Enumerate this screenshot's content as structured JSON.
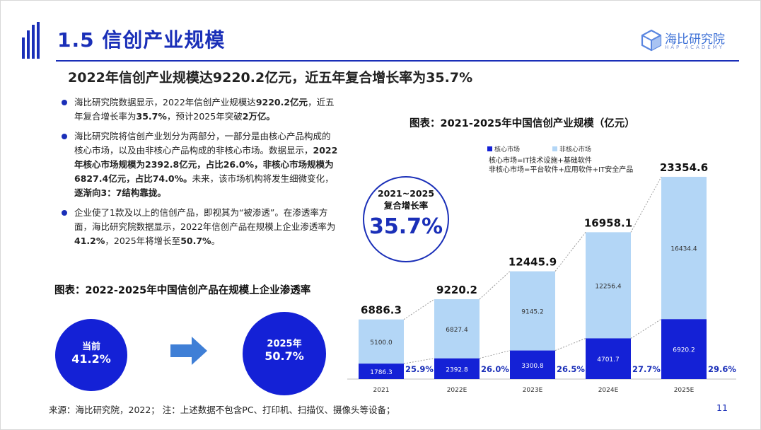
{
  "header": {
    "title": "1.5 信创产业规模",
    "brand_name": "海比研究院",
    "brand_sub": "HAP ACADEMY"
  },
  "subtitle": "2022年信创产业规模达9220.2亿元，近五年复合增长率为35.7%",
  "bullets": [
    [
      {
        "t": "海比研究院数据显示，2022年信创产业规模达",
        "b": false
      },
      {
        "t": "9220.2亿元",
        "b": true
      },
      {
        "t": "，近五年复合增长率为",
        "b": false
      },
      {
        "t": "35.7%",
        "b": true
      },
      {
        "t": "，预计2025年突破",
        "b": false
      },
      {
        "t": "2万亿。",
        "b": true
      }
    ],
    [
      {
        "t": "海比研究院将信创产业划分为两部分，",
        "b": false
      },
      {
        "t": "一部分是由核心产品构成的核心市场，以及由非核心产品构成的非核心市场。",
        "b": false
      },
      {
        "t": "数据显示，",
        "b": false
      },
      {
        "t": "2022年核心市场规模为2392.8亿元，占比26.0%，非核心市场规模为6827.4亿元，占比74.0%。",
        "b": true
      },
      {
        "t": "未来，该市场机构将发生细微变化，",
        "b": false
      },
      {
        "t": "逐渐向3：7结构靠拢。",
        "b": true
      }
    ],
    [
      {
        "t": "企业使了1款及以上的信创产品，即视其为“被渗透”。在渗透率方面，海比研究院数据显示，2022年信创产品在规模上企业渗透率为",
        "b": false
      },
      {
        "t": "41.2%",
        "b": true
      },
      {
        "t": "，2025年将增长至",
        "b": false
      },
      {
        "t": "50.7%",
        "b": true
      },
      {
        "t": "。",
        "b": false
      }
    ]
  ],
  "penetration": {
    "caption": "图表：2022-2025年中国信创产品在规模上企业渗透率",
    "current_label": "当前",
    "current_value": "41.2%",
    "future_label": "2025年",
    "future_value": "50.7%"
  },
  "cagr": {
    "label_line1": "2021~2025",
    "label_line2": "复合增长率",
    "value": "35.7%"
  },
  "chart_caption": "图表：2021-2025年中国信创产业规模（亿元）",
  "chart_data": {
    "type": "bar",
    "stacked": true,
    "categories": [
      "2021",
      "2022E",
      "2023E",
      "2024E",
      "2025E"
    ],
    "series": [
      {
        "name": "核心市场",
        "color": "#1421d6",
        "values": [
          1786.3,
          2392.8,
          3300.8,
          4701.7,
          6920.2
        ]
      },
      {
        "name": "非核心市场",
        "color": "#b3d6f6",
        "values": [
          5100.0,
          6827.4,
          9145.2,
          12256.4,
          16434.4
        ]
      }
    ],
    "totals": [
      "6886.3",
      "9220.2",
      "12445.9",
      "16958.1",
      "23354.6"
    ],
    "core_labels": [
      "1786.3",
      "2392.8",
      "3300.8",
      "4701.7",
      "6920.2"
    ],
    "noncore_labels": [
      "5100.0",
      "6827.4",
      "9145.2",
      "12256.4",
      "16434.4"
    ],
    "core_share": [
      "25.9%",
      "26.0%",
      "26.5%",
      "27.7%",
      "29.6%"
    ],
    "legend": [
      "核心市场",
      "非核心市场"
    ],
    "legend_position": "top-left",
    "notes": [
      "核心市场=IT技术设施+基础软件",
      "非核心市场=平台软件+应用软件+IT安全产品"
    ],
    "grid": false,
    "ylim": [
      0,
      24500
    ]
  },
  "footer": {
    "source": "来源：海比研究院，2022；      注：上述数据不包含PC、打印机、扫描仪、摄像头等设备；",
    "page": "11"
  }
}
